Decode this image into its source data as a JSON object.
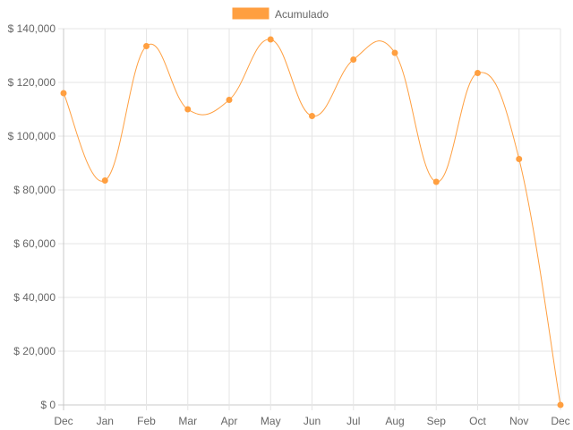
{
  "chart_data": {
    "type": "line",
    "x": [
      "Dec",
      "Jan",
      "Feb",
      "Mar",
      "Apr",
      "May",
      "Jun",
      "Jul",
      "Aug",
      "Sep",
      "Oct",
      "Nov",
      "Dec"
    ],
    "series": [
      {
        "name": "Acumulado",
        "values": [
          116000,
          83500,
          133500,
          110000,
          113500,
          136000,
          107500,
          128500,
          131000,
          83000,
          123500,
          91500,
          0
        ]
      }
    ],
    "ylim": [
      0,
      140000
    ],
    "y_ticks": [
      0,
      20000,
      40000,
      60000,
      80000,
      100000,
      120000,
      140000
    ],
    "y_tick_labels": [
      "$ 0",
      "$ 20,000",
      "$ 40,000",
      "$ 60,000",
      "$ 80,000",
      "$ 100,000",
      "$ 120,000",
      "$ 140,000"
    ],
    "grid": true,
    "legend_position": "top",
    "line_color": "#ff9f40",
    "point_color": "#ff9f40",
    "legend_fill": "#ff9f40",
    "gridline_color": "#e5e5e5",
    "axis_line_color": "#c8c8c8"
  }
}
